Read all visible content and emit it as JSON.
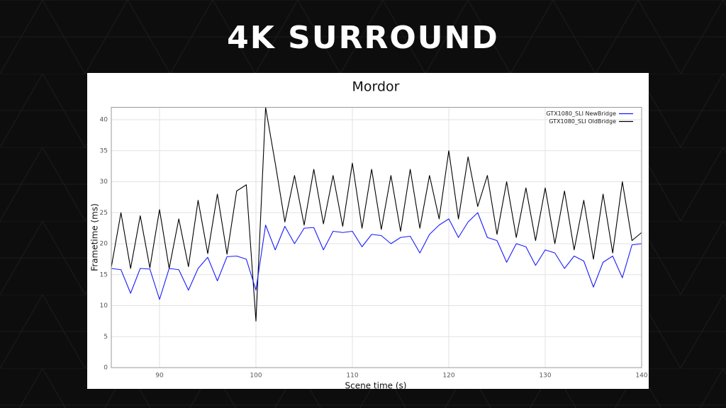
{
  "slide_title": "4K SURROUND",
  "chart_data": {
    "type": "line",
    "title": "Mordor",
    "x_label": "Scene time (s)",
    "y_label": "Frametime (ms)",
    "x": [
      85,
      86,
      87,
      88,
      89,
      90,
      91,
      92,
      93,
      94,
      95,
      96,
      97,
      98,
      99,
      100,
      101,
      102,
      103,
      104,
      105,
      106,
      107,
      108,
      109,
      110,
      111,
      112,
      113,
      114,
      115,
      116,
      117,
      118,
      119,
      120,
      121,
      122,
      123,
      124,
      125,
      126,
      127,
      128,
      129,
      130,
      131,
      132,
      133,
      134,
      135,
      136,
      137,
      138,
      139,
      140
    ],
    "series": [
      {
        "name": "GTX1080_SLI NewBridge",
        "color": "#1a1aff",
        "values": [
          16,
          15.8,
          12,
          16,
          15.9,
          11,
          16,
          15.8,
          12.5,
          16,
          17.8,
          14,
          17.9,
          18,
          17.5,
          12.5,
          23,
          19,
          22.8,
          20,
          22.5,
          22.6,
          19,
          22,
          21.8,
          22,
          19.5,
          21.5,
          21.3,
          20,
          21,
          21.2,
          18.5,
          21.5,
          23,
          24,
          21,
          23.5,
          25,
          21,
          20.5,
          17,
          20,
          19.5,
          16.5,
          19,
          18.5,
          16,
          18,
          17.2,
          13,
          17,
          18,
          14.5,
          19.8,
          20
        ]
      },
      {
        "name": "GTX1080_SLI OldBridge",
        "color": "#000000",
        "values": [
          16.2,
          25,
          16,
          24.5,
          16.1,
          25.5,
          16,
          24,
          16.3,
          27,
          18.4,
          28,
          18.3,
          28.5,
          29.5,
          7.5,
          42,
          33,
          23.5,
          31,
          23,
          32,
          23.2,
          31,
          22.8,
          33,
          22.5,
          32,
          22.3,
          31,
          22,
          32,
          22.5,
          31,
          24,
          35,
          24,
          34,
          26,
          31,
          21.5,
          30,
          21,
          29,
          20.5,
          29,
          20,
          28.5,
          19,
          27,
          17.5,
          28,
          18.5,
          30,
          20.5,
          21.8
        ]
      }
    ],
    "xlim": [
      85,
      140
    ],
    "xticks": [
      90,
      100,
      110,
      120,
      130,
      140
    ],
    "ylim": [
      0,
      42
    ],
    "yticks": [
      0,
      5,
      10,
      15,
      20,
      25,
      30,
      35,
      40
    ],
    "grid": true,
    "legend": "upper right"
  }
}
